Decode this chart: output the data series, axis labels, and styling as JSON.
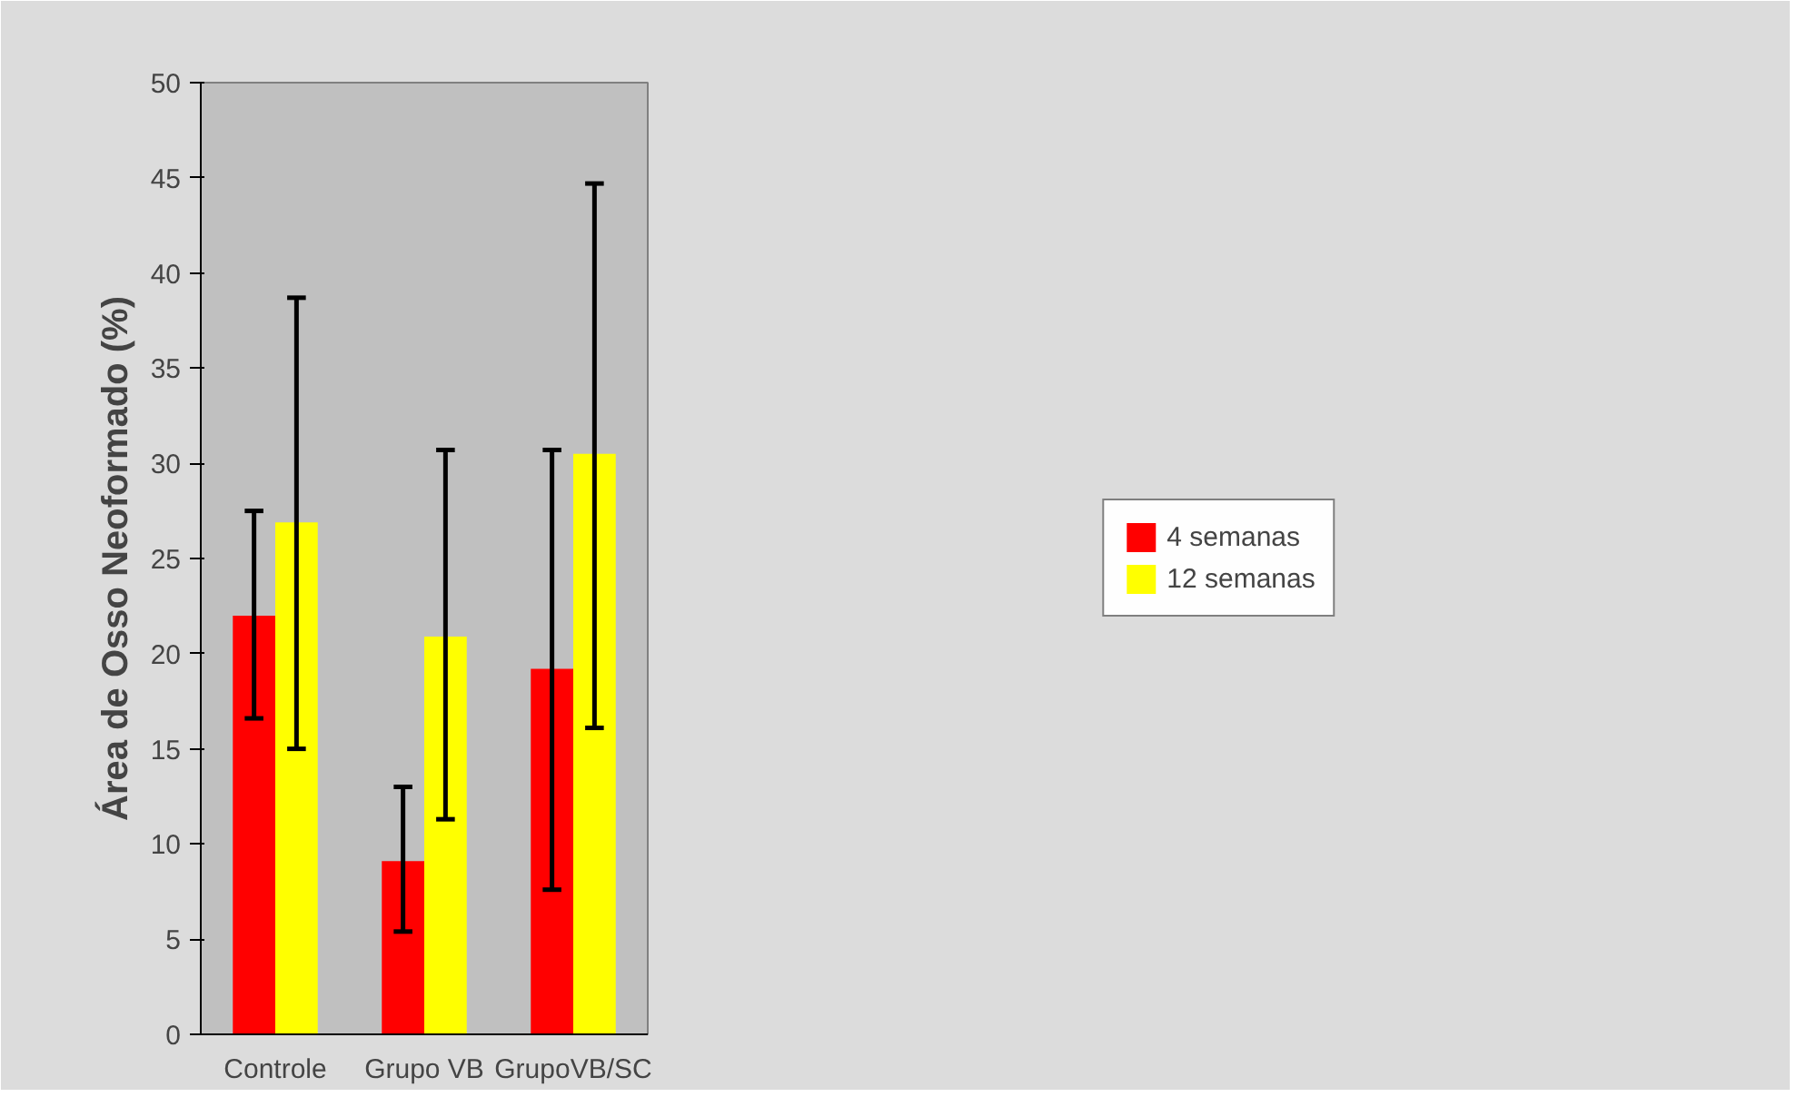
{
  "chart_data": {
    "type": "bar",
    "ylabel": "Área de Osso Neoformado (%)",
    "categories": [
      "Controle",
      "Grupo VB",
      "GrupoVB/SC"
    ],
    "series": [
      {
        "name": "4 semanas",
        "color": "#ff0000",
        "values": [
          22.0,
          9.1,
          19.2
        ],
        "errors": [
          [
            16.6,
            27.5
          ],
          [
            5.4,
            13.0
          ],
          [
            7.6,
            30.7
          ]
        ]
      },
      {
        "name": "12 semanas",
        "color": "#ffff00",
        "values": [
          26.9,
          20.9,
          30.5
        ],
        "errors": [
          [
            15.0,
            38.7
          ],
          [
            11.3,
            30.7
          ],
          [
            16.1,
            44.7
          ]
        ]
      }
    ],
    "ylim": [
      0,
      50
    ],
    "yticks": [
      0,
      5,
      10,
      15,
      20,
      25,
      30,
      35,
      40,
      45,
      50
    ],
    "grid": false,
    "legend": "right"
  }
}
